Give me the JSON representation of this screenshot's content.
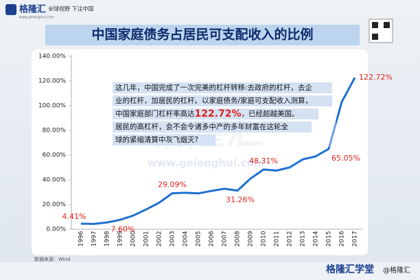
{
  "header": {
    "logo": "格隆汇",
    "slogan": "全球视野 下注中国",
    "site": "www.gelonghui.com"
  },
  "chart_data": {
    "type": "line",
    "title": "中国家庭债务占居民可支配收入的比例",
    "categories": [
      "1996",
      "1997",
      "1998",
      "1999",
      "2000",
      "2001",
      "2002",
      "2003",
      "2004",
      "2005",
      "2006",
      "2007",
      "2008",
      "2009",
      "2010",
      "2011",
      "2012",
      "2013",
      "2014",
      "2015",
      "2016",
      "2017"
    ],
    "values": [
      4.41,
      4.3,
      5.5,
      7.6,
      11,
      16,
      21.5,
      29.09,
      29.5,
      29,
      31,
      32.8,
      31.26,
      41,
      48.31,
      47.5,
      50,
      56.5,
      59,
      65.05,
      103,
      122.72
    ],
    "value_labels": [
      "4.41%",
      null,
      null,
      "7.60%",
      null,
      null,
      null,
      "29.09%",
      null,
      null,
      null,
      null,
      "31.26%",
      null,
      "48.31%",
      null,
      null,
      null,
      null,
      "65.05%",
      null,
      "122.72%"
    ],
    "color": "#1f6fd1",
    "label_color": "#e0201c",
    "ylim": [
      0,
      140
    ],
    "yticks": [
      {
        "value": 0,
        "label": "0.00%"
      },
      {
        "value": 20,
        "label": "20.00%"
      },
      {
        "value": 40,
        "label": "40.00%"
      },
      {
        "value": 60,
        "label": "60.00%"
      },
      {
        "value": 80,
        "label": "80.00%"
      },
      {
        "value": 100,
        "label": "100.00%"
      },
      {
        "value": 120,
        "label": "120.00%"
      },
      {
        "value": 140,
        "label": "140.00%"
      }
    ],
    "annotation": {
      "lines": [
        "这几年，中国完成了一次完美的杠杆转移:去政府的杠杆，去企",
        "业的杠杆，加居民的杠杆。以家庭债务/家庭可支配收入测算，"
      ],
      "highlight_line": [
        "中国家庭部门杠杆率高达",
        "122.72%",
        "，已经超越美国。"
      ],
      "tail_lines": [
        "居民的高杠杆，会不会令诸多中产的多年财富在这轮全",
        "球的紧缩清算中灰飞烟灭?"
      ]
    },
    "watermark": "格隆汇",
    "watermark_site": "www.gelonghui.com",
    "source": "数据来源：Wind"
  },
  "footer": {
    "brand": "格隆汇学堂",
    "handle": "@格隆汇"
  }
}
